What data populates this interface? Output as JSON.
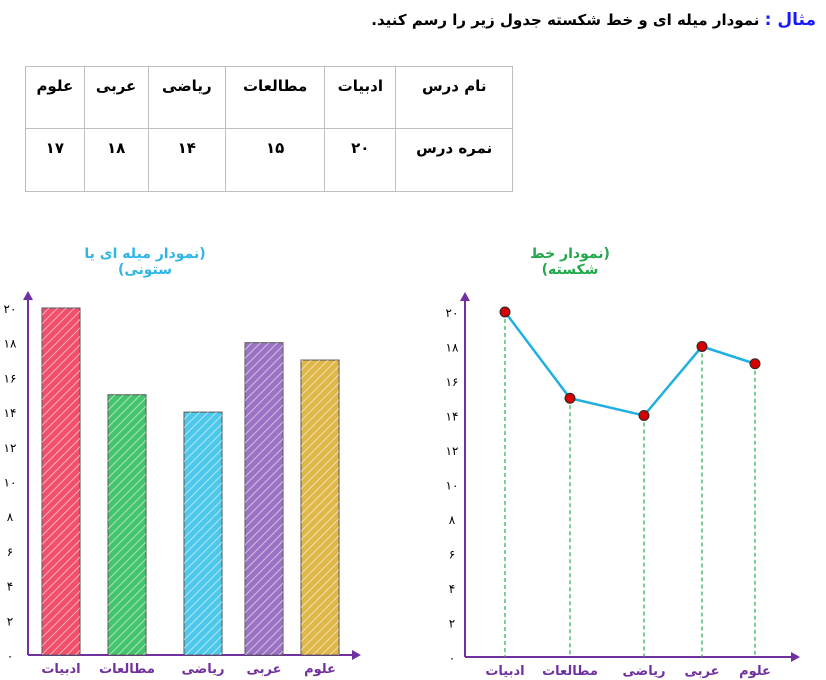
{
  "header": {
    "label": "مثال :",
    "text": "نمودار میله ای و خط شکسته جدول زیر را رسم کنید."
  },
  "table": {
    "row_label": "نام درس",
    "value_label": "نمره درس",
    "subjects": [
      "ادبیات",
      "مطالعات",
      "ریاضی",
      "عربی",
      "علوم"
    ],
    "grades": [
      "۲۰",
      "۱۵",
      "۱۴",
      "۱۸",
      "۱۷"
    ]
  },
  "bar_title": "(نمودار میله ای یا ستونی)",
  "line_title": "(نمودار خط شکسته)",
  "colors": {
    "bar_title": "#2fb5e6",
    "line_title": "#22a84a",
    "axis": "#7030a0",
    "line": "#1fb0e0",
    "point": "#d40000",
    "guides": "#22b14c",
    "bars": [
      "#f0506a",
      "#44c46c",
      "#4dc8ea",
      "#9c72c4",
      "#e0b84a"
    ]
  },
  "chart_data": [
    {
      "type": "bar",
      "title": "(نمودار میله ای یا ستونی)",
      "categories": [
        "ادبیات",
        "مطالعات",
        "ریاضی",
        "عربی",
        "علوم"
      ],
      "values": [
        20,
        15,
        14,
        18,
        17
      ],
      "yticks": [
        "۰",
        "۲",
        "۴",
        "۶",
        "۸",
        "۱۰",
        "۱۲",
        "۱۴",
        "۱۶",
        "۱۸",
        "۲۰"
      ],
      "ylim": [
        0,
        20
      ]
    },
    {
      "type": "line",
      "title": "(نمودار خط شکسته)",
      "categories": [
        "ادبیات",
        "مطالعات",
        "ریاضی",
        "عربی",
        "علوم"
      ],
      "values": [
        20,
        15,
        14,
        18,
        17
      ],
      "yticks": [
        "۰",
        "۲",
        "۴",
        "۶",
        "۸",
        "۱۰",
        "۱۲",
        "۱۴",
        "۱۶",
        "۱۸",
        "۲۰"
      ],
      "ylim": [
        0,
        20
      ]
    }
  ]
}
